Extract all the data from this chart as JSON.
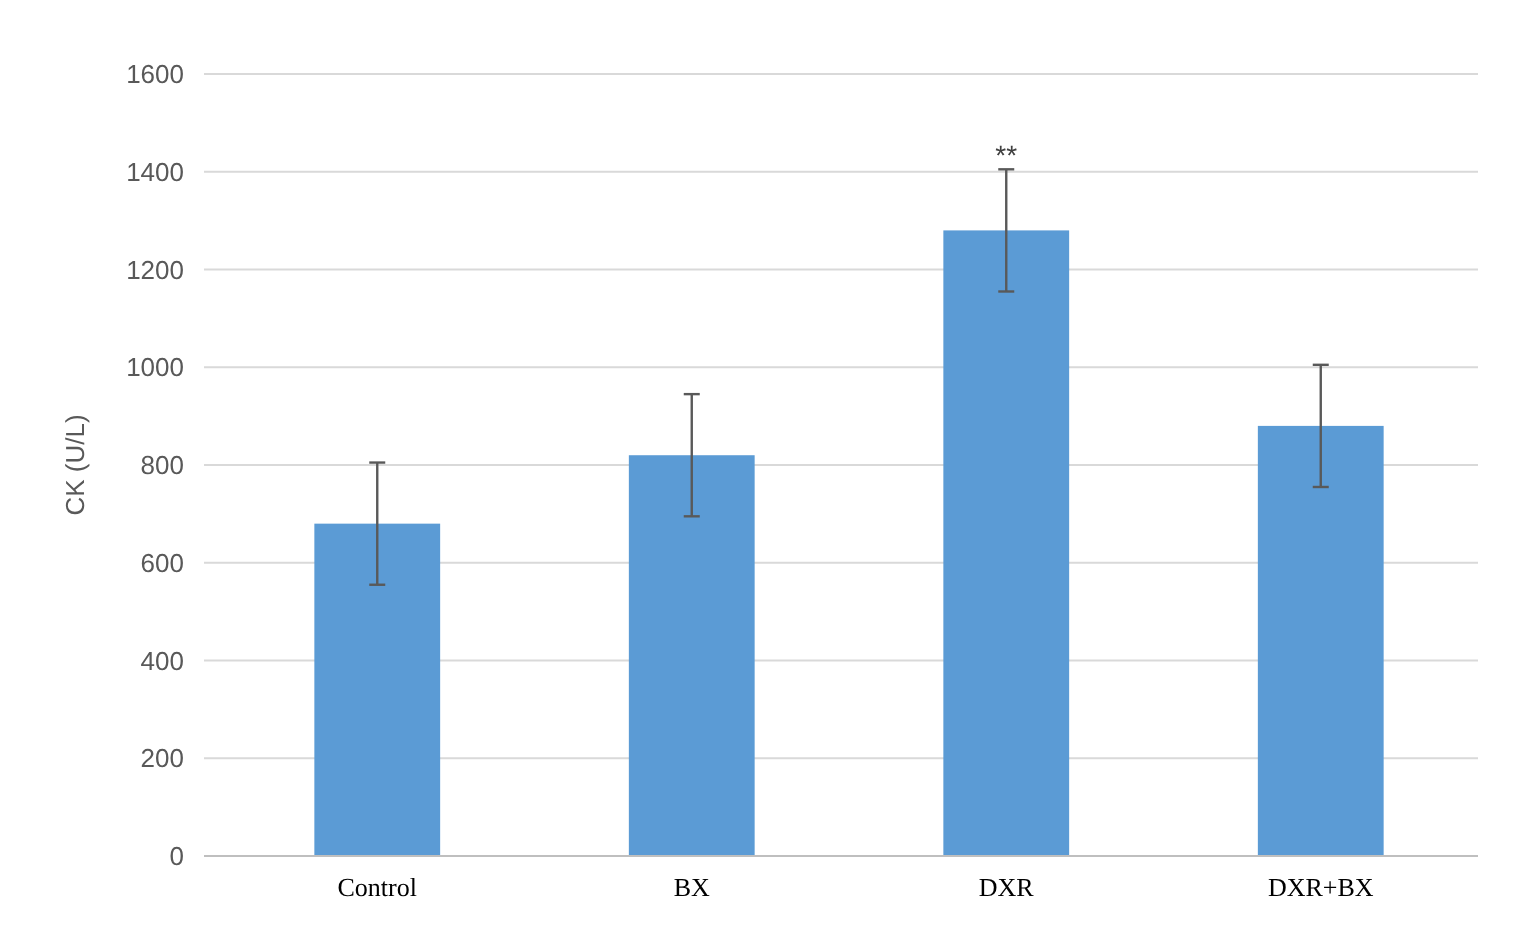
{
  "chart_data": {
    "type": "bar",
    "ylabel": "CK (U/L)",
    "categories": [
      "Control",
      "BX",
      "DXR",
      "DXR+BX"
    ],
    "values": [
      680,
      820,
      1280,
      880
    ],
    "errors": [
      125,
      125,
      125,
      125
    ],
    "color": "#5b9bd5",
    "ylim": [
      0,
      1600
    ],
    "yticks": [
      0,
      200,
      400,
      600,
      800,
      1000,
      1200,
      1400,
      1600
    ],
    "grid": "y",
    "annotations": [
      {
        "text": "**",
        "x": "DXR",
        "y": 1405
      }
    ]
  }
}
